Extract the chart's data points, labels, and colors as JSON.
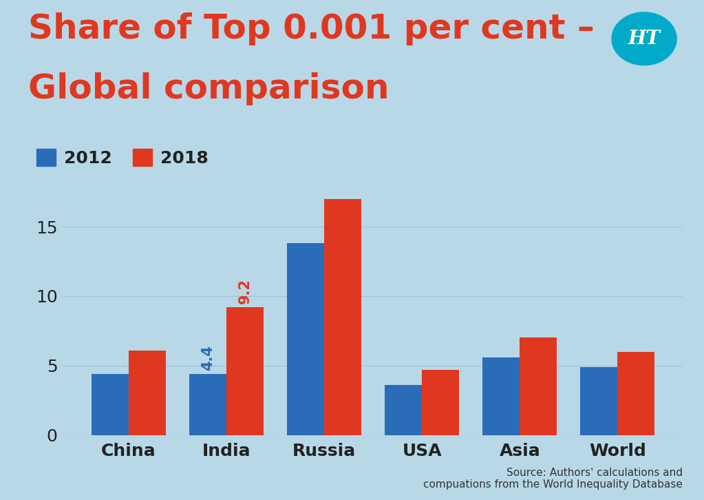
{
  "title_line1": "Share of Top 0.001 per cent –",
  "title_line2": "Global comparison",
  "categories": [
    "China",
    "India",
    "Russia",
    "USA",
    "Asia",
    "World"
  ],
  "values_2012": [
    4.4,
    4.4,
    13.8,
    3.6,
    5.6,
    4.9
  ],
  "values_2018": [
    6.1,
    9.2,
    17.0,
    4.7,
    7.0,
    6.0
  ],
  "color_2012": "#2b6cb8",
  "color_2018": "#e03820",
  "background_color": "#b8d8e8",
  "title_color": "#e03820",
  "label_2012": "2012",
  "label_2018": "2018",
  "annotated_index": 1,
  "annotation_2012": "4.4",
  "annotation_2018": "9.2",
  "annotation_color_2012": "#2b6cb8",
  "annotation_color_2018": "#e03820",
  "ylim": [
    0,
    18
  ],
  "yticks": [
    0,
    5,
    10,
    15
  ],
  "source_text": "Source: Authors' calculations and\ncompuations from the World Inequality Database",
  "bar_width": 0.38,
  "logo_color": "#00aac8",
  "logo_text": "HT",
  "grid_color": "#a0c4d8",
  "tick_label_color": "#222222"
}
